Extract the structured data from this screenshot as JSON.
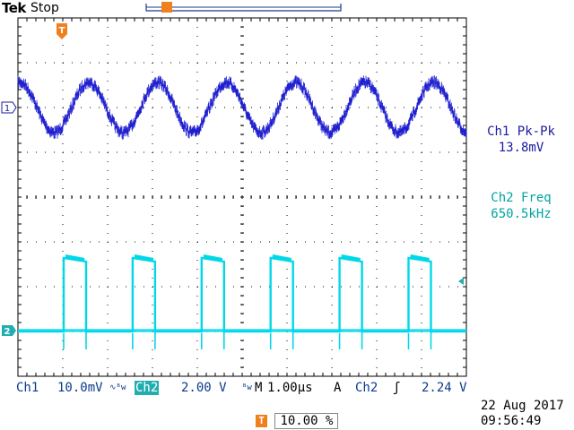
{
  "header": {
    "brand": "Tek",
    "acq_state": "Stop"
  },
  "markers": {
    "trigger_marker": "T",
    "ch1_marker": "1",
    "ch2_marker": "2"
  },
  "measurements": {
    "m1_name": "Ch1 Pk-Pk",
    "m1_value": "13.8mV",
    "m2_name": "Ch2 Freq",
    "m2_value": "650.5kHz"
  },
  "status": {
    "ch1_label": "Ch1",
    "ch1_scale": "10.0mV",
    "ch2_label": "Ch2",
    "ch2_scale": "2.00 V",
    "timebase_label": "M",
    "timebase": "1.00µs",
    "trig_mode": "A",
    "trig_source": "Ch2",
    "trig_level": "2.24 V"
  },
  "trigger_position": {
    "icon": "T",
    "value": "10.00 %"
  },
  "datetime": {
    "date": "22 Aug 2017",
    "time": "09:56:49"
  },
  "colors": {
    "ch1": "#1f1fd0",
    "ch2": "#00d8e8",
    "trigger": "#f07f1e",
    "grid": "#000000"
  }
}
